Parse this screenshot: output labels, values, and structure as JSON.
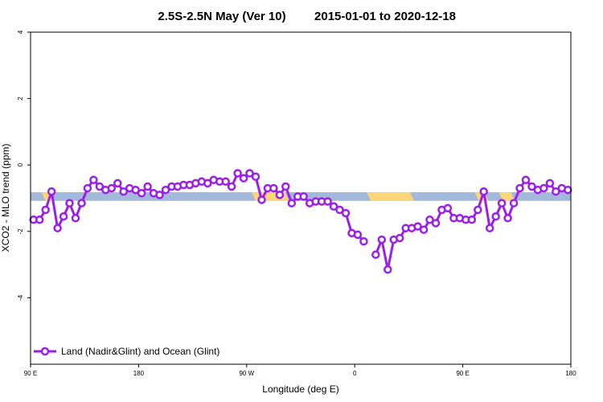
{
  "chart_data": {
    "type": "line",
    "title_left": "2.5S-2.5N May (Ver 10)",
    "title_right": "2015-01-01 to 2020-12-18",
    "xlabel": "Longitude (deg E)",
    "ylabel": "XCO2 - MLO trend (ppm)",
    "xticks": [
      {
        "value": 90,
        "label": "90 E"
      },
      {
        "value": 180,
        "label": "180"
      },
      {
        "value": 270,
        "label": "90 W"
      },
      {
        "value": 360,
        "label": "0"
      },
      {
        "value": 450,
        "label": "90 E"
      },
      {
        "value": 540,
        "label": "180"
      }
    ],
    "yticks": [
      {
        "value": 4,
        "label": "4"
      },
      {
        "value": 2,
        "label": "2"
      },
      {
        "value": 0,
        "label": "0"
      },
      {
        "value": -2,
        "label": "-2"
      },
      {
        "value": -4,
        "label": "-4"
      }
    ],
    "xlim": [
      90,
      540
    ],
    "ylim": [
      -6,
      4
    ],
    "grid": false,
    "legend_position": "bottom-left",
    "series": [
      {
        "name": "Land (Nadir&Glint) and Ocean (Glint)",
        "color": "#9b1fe8",
        "points": [
          [
            92.5,
            -1.65
          ],
          [
            97.5,
            -1.65
          ],
          [
            102.5,
            -1.35
          ],
          [
            107.5,
            -0.8
          ],
          [
            112.5,
            -1.9
          ],
          [
            117.5,
            -1.55
          ],
          [
            122.5,
            -1.15
          ],
          [
            127.5,
            -1.6
          ],
          [
            132.5,
            -1.15
          ],
          [
            137.5,
            -0.7
          ],
          [
            142.5,
            -0.45
          ],
          [
            147.5,
            -0.65
          ],
          [
            152.5,
            -0.75
          ],
          [
            157.5,
            -0.7
          ],
          [
            162.5,
            -0.55
          ],
          [
            167.5,
            -0.8
          ],
          [
            172.5,
            -0.7
          ],
          [
            177.5,
            -0.75
          ],
          [
            182.5,
            -0.85
          ],
          [
            187.5,
            -0.65
          ],
          [
            192.5,
            -0.85
          ],
          [
            197.5,
            -0.9
          ],
          [
            202.5,
            -0.75
          ],
          [
            207.5,
            -0.65
          ],
          [
            212.5,
            -0.65
          ],
          [
            217.5,
            -0.6
          ],
          [
            222.5,
            -0.6
          ],
          [
            227.5,
            -0.55
          ],
          [
            232.5,
            -0.5
          ],
          [
            237.5,
            -0.55
          ],
          [
            242.5,
            -0.45
          ],
          [
            247.5,
            -0.5
          ],
          [
            252.5,
            -0.5
          ],
          [
            257.5,
            -0.65
          ],
          [
            262.5,
            -0.25
          ],
          [
            267.5,
            -0.4
          ],
          [
            272.5,
            -0.25
          ],
          [
            277.5,
            -0.35
          ],
          [
            282.5,
            -1.05
          ],
          [
            287.5,
            -0.7
          ],
          [
            292.5,
            -0.7
          ],
          [
            297.5,
            -0.9
          ],
          [
            302.5,
            -0.65
          ],
          [
            307.5,
            -1.15
          ],
          [
            312.5,
            -0.95
          ],
          [
            317.5,
            -0.95
          ],
          [
            322.5,
            -1.15
          ],
          [
            327.5,
            -1.1
          ],
          [
            332.5,
            -1.1
          ],
          [
            337.5,
            -1.1
          ],
          [
            342.5,
            -1.25
          ],
          [
            347.5,
            -1.35
          ],
          [
            352.5,
            -1.45
          ],
          [
            357.5,
            -2.05
          ],
          [
            362.5,
            -2.1
          ],
          [
            367.5,
            -2.3
          ],
          [
            null,
            null
          ],
          [
            377.5,
            -2.7
          ],
          [
            382.5,
            -2.25
          ],
          [
            387.5,
            -3.15
          ],
          [
            392.5,
            -2.25
          ],
          [
            397.5,
            -2.2
          ],
          [
            402.5,
            -1.9
          ],
          [
            407.5,
            -1.9
          ],
          [
            412.5,
            -1.85
          ],
          [
            417.5,
            -1.95
          ],
          [
            422.5,
            -1.65
          ],
          [
            427.5,
            -1.75
          ],
          [
            432.5,
            -1.35
          ],
          [
            437.5,
            -1.3
          ],
          [
            442.5,
            -1.6
          ],
          [
            447.5,
            -1.6
          ],
          [
            452.5,
            -1.65
          ],
          [
            457.5,
            -1.65
          ],
          [
            462.5,
            -1.35
          ],
          [
            467.5,
            -0.8
          ],
          [
            472.5,
            -1.9
          ],
          [
            477.5,
            -1.55
          ],
          [
            482.5,
            -1.15
          ],
          [
            487.5,
            -1.6
          ],
          [
            492.5,
            -1.15
          ],
          [
            497.5,
            -0.7
          ],
          [
            502.5,
            -0.45
          ],
          [
            507.5,
            -0.65
          ],
          [
            512.5,
            -0.75
          ],
          [
            517.5,
            -0.7
          ],
          [
            522.5,
            -0.55
          ],
          [
            527.5,
            -0.8
          ],
          [
            532.5,
            -0.7
          ],
          [
            537.5,
            -0.75
          ]
        ]
      }
    ],
    "surface_band": {
      "y_range": [
        -1.08,
        -0.82
      ],
      "ocean_color": "#a3b9dc",
      "land_color": "#fcd77a",
      "land_segments": [
        [
          99,
          106
        ],
        [
          274,
          302
        ],
        [
          370,
          406
        ],
        [
          460,
          468
        ],
        [
          480,
          490
        ]
      ]
    }
  }
}
